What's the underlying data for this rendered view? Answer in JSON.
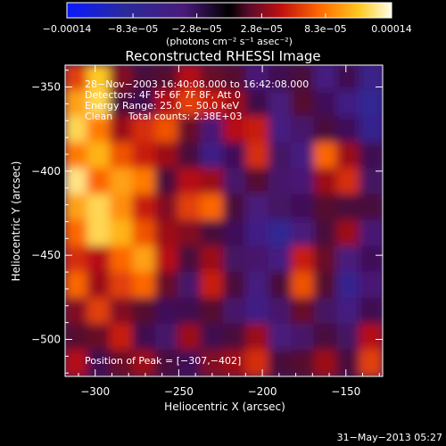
{
  "chart_data": {
    "type": "heatmap",
    "title": "Reconstructed RHESSI Image",
    "xlabel": "Heliocentric X (arcsec)",
    "ylabel": "Heliocentric Y (arcsec)",
    "xlim": [
      -318,
      -128
    ],
    "ylim": [
      -522,
      -337
    ],
    "x_ticks": [
      -300,
      -250,
      -200,
      -150
    ],
    "y_ticks": [
      -350,
      -400,
      -450,
      -500
    ],
    "x_tick_labels": [
      "−300",
      "−250",
      "−200",
      "−150"
    ],
    "y_tick_labels": [
      "−350",
      "−400",
      "−450",
      "−500"
    ],
    "colorbar": {
      "range": [
        -0.00014,
        0.00014
      ],
      "tick_values": [
        -0.00014,
        -8.3e-05,
        -2.8e-05,
        2.8e-05,
        8.3e-05,
        0.00014
      ],
      "tick_labels": [
        "−0.00014",
        "−8.3e−05",
        "−2.8e−05",
        "2.8e−05",
        "8.3e−05",
        "0.00014"
      ],
      "unit_label": "(photons cm⁻² s⁻¹ asec⁻²)"
    },
    "annotations": [
      "28−Nov−2003 16:40:08.000 to 16:42:08.000",
      "Detectors: 4F 5F 6F 7F 8F, Att 0",
      "Energy Range: 25.0 − 50.0 keV",
      "Clean     Total counts: 2.38E+03"
    ],
    "peak_label": "Position of Peak = [−307,−402]",
    "peak_position": [
      -307,
      -402
    ],
    "footer_date": "31−May−2013 05:27",
    "intensity_grid_note": "values in colorbar units scaled to [-1,1] of range",
    "grid": [
      [
        0.45,
        0.8,
        0.2,
        0.05,
        0.1,
        0.3,
        0.15,
        0.1,
        -0.25,
        -0.05,
        0.05,
        -0.35,
        -0.05,
        -0.45
      ],
      [
        0.7,
        0.85,
        0.05,
        -0.05,
        0.3,
        0.45,
        0.35,
        0.25,
        0.0,
        -0.3,
        0.1,
        -0.1,
        -0.4,
        -0.55
      ],
      [
        0.85,
        0.6,
        0.25,
        0.4,
        0.5,
        0.15,
        -0.25,
        0.3,
        0.35,
        -0.35,
        -0.2,
        0.05,
        -0.1,
        -0.5
      ],
      [
        0.6,
        0.75,
        0.5,
        0.35,
        0.25,
        0.05,
        -0.4,
        -0.1,
        0.4,
        -0.15,
        -0.35,
        0.55,
        0.25,
        -0.05
      ],
      [
        0.9,
        0.55,
        0.7,
        0.6,
        0.05,
        0.3,
        0.25,
        -0.2,
        0.1,
        -0.2,
        -0.25,
        0.25,
        0.4,
        -0.15
      ],
      [
        0.7,
        0.85,
        0.65,
        0.35,
        0.2,
        0.45,
        0.55,
        0.05,
        -0.3,
        -0.15,
        -0.1,
        0.1,
        0.05,
        0.05
      ],
      [
        0.55,
        0.85,
        0.75,
        0.5,
        0.25,
        0.2,
        0.05,
        -0.1,
        -0.4,
        -0.55,
        -0.3,
        0.05,
        0.25,
        -0.25
      ],
      [
        0.4,
        0.3,
        0.55,
        0.7,
        0.3,
        0.05,
        0.25,
        -0.15,
        -0.2,
        -0.35,
        0.35,
        0.15,
        -0.3,
        -0.1
      ],
      [
        0.55,
        0.25,
        0.45,
        0.55,
        0.15,
        -0.2,
        0.35,
        0.05,
        -0.35,
        0.05,
        0.5,
        0.1,
        -0.5,
        -0.25
      ],
      [
        0.2,
        0.45,
        0.2,
        0.1,
        -0.1,
        -0.05,
        0.1,
        -0.2,
        -0.4,
        -0.2,
        0.15,
        -0.15,
        -0.35,
        -0.05
      ],
      [
        0.1,
        0.15,
        0.35,
        -0.05,
        -0.2,
        0.25,
        -0.05,
        0.05,
        0.25,
        -0.3,
        -0.2,
        0.05,
        -0.15,
        0.3
      ],
      [
        0.3,
        -0.05,
        0.15,
        0.25,
        0.05,
        -0.1,
        0.2,
        0.25,
        0.4,
        0.05,
        0.1,
        0.25,
        0.05,
        0.45
      ]
    ]
  }
}
